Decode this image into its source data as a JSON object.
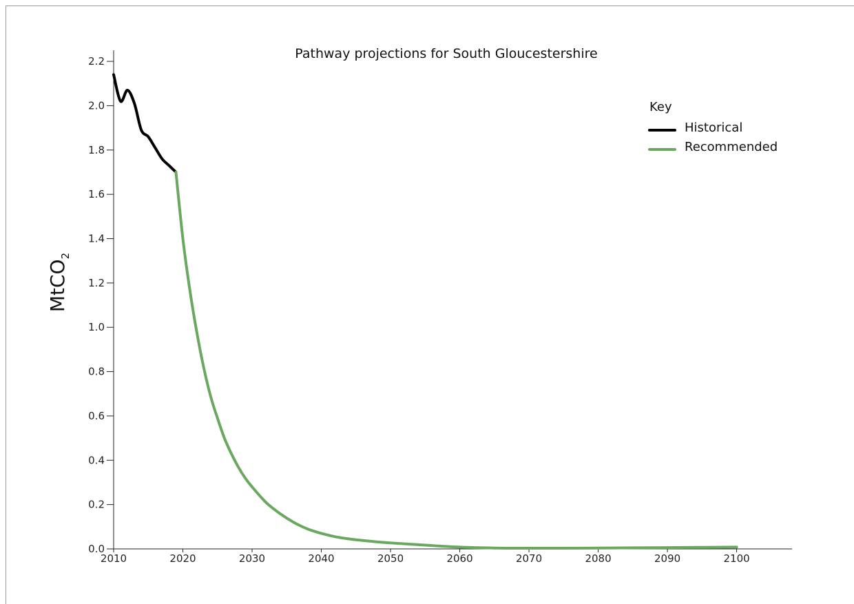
{
  "chart_data": {
    "type": "line",
    "title": "Pathway projections for South Gloucestershire",
    "ylabel_main": "MtCO",
    "ylabel_subscript": "2",
    "xlim": [
      2010,
      2108
    ],
    "ylim": [
      0,
      2.25
    ],
    "x_ticks": [
      "2010",
      "2020",
      "2030",
      "2040",
      "2050",
      "2060",
      "2070",
      "2080",
      "2090",
      "2100"
    ],
    "x_tick_values": [
      2010,
      2020,
      2030,
      2040,
      2050,
      2060,
      2070,
      2080,
      2090,
      2100
    ],
    "y_ticks": [
      "0.0",
      "0.2",
      "0.4",
      "0.6",
      "0.8",
      "1.0",
      "1.2",
      "1.4",
      "1.6",
      "1.8",
      "2.0",
      "2.2"
    ],
    "y_tick_values": [
      0,
      0.2,
      0.4,
      0.6,
      0.8,
      1.0,
      1.2,
      1.4,
      1.6,
      1.8,
      2.0,
      2.2
    ],
    "legend_title": "Key",
    "legend_position": "top-right",
    "grid": false,
    "series": [
      {
        "name": "Historical",
        "color": "#000000",
        "x": [
          2010,
          2011,
          2012,
          2013,
          2014,
          2015,
          2016,
          2017,
          2018,
          2019
        ],
        "y": [
          2.14,
          2.02,
          2.07,
          2.01,
          1.89,
          1.86,
          1.81,
          1.76,
          1.73,
          1.7
        ]
      },
      {
        "name": "Recommended",
        "color": "#6aa85f",
        "x": [
          2019,
          2020,
          2021,
          2022,
          2023,
          2024,
          2025,
          2026,
          2027,
          2028,
          2029,
          2030,
          2032,
          2034,
          2036,
          2038,
          2040,
          2042,
          2044,
          2046,
          2048,
          2050,
          2055,
          2060,
          2065,
          2070,
          2075,
          2080,
          2085,
          2090,
          2095,
          2100
        ],
        "y": [
          1.7,
          1.4,
          1.17,
          0.98,
          0.82,
          0.69,
          0.59,
          0.5,
          0.43,
          0.37,
          0.32,
          0.28,
          0.21,
          0.16,
          0.12,
          0.09,
          0.07,
          0.055,
          0.045,
          0.038,
          0.032,
          0.027,
          0.017,
          0.008,
          0.004,
          0.003,
          0.003,
          0.004,
          0.005,
          0.006,
          0.007,
          0.008
        ]
      }
    ]
  }
}
